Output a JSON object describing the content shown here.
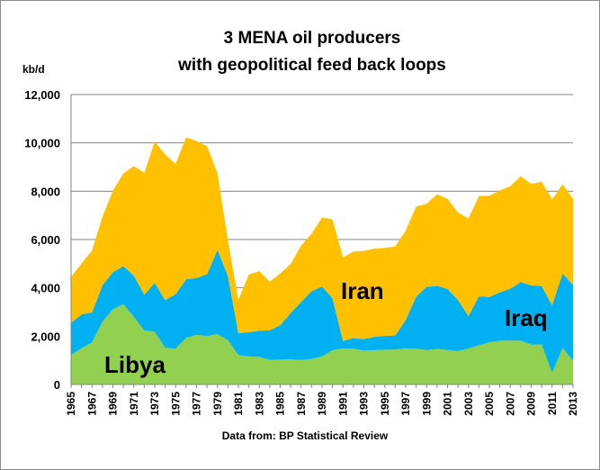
{
  "chart_data": {
    "type": "area",
    "stacked": true,
    "title": [
      "3 MENA oil producers",
      "with geopolitical feed back loops"
    ],
    "ylabel": "kb/d",
    "source": "Data from: BP Statistical Review",
    "ylim": [
      0,
      12000
    ],
    "yticks": [
      "0",
      "2,000",
      "4,000",
      "6,000",
      "8,000",
      "10,000",
      "12,000"
    ],
    "ytick_values": [
      0,
      2000,
      4000,
      6000,
      8000,
      10000,
      12000
    ],
    "grid": true,
    "x": [
      1965,
      1966,
      1967,
      1968,
      1969,
      1970,
      1971,
      1972,
      1973,
      1974,
      1975,
      1976,
      1977,
      1978,
      1979,
      1980,
      1981,
      1982,
      1983,
      1984,
      1985,
      1986,
      1987,
      1988,
      1989,
      1990,
      1991,
      1992,
      1993,
      1994,
      1995,
      1996,
      1997,
      1998,
      1999,
      2000,
      2001,
      2002,
      2003,
      2004,
      2005,
      2006,
      2007,
      2008,
      2009,
      2010,
      2011,
      2012,
      2013
    ],
    "xticks": [
      "1965",
      "1967",
      "1969",
      "1971",
      "1973",
      "1975",
      "1977",
      "1979",
      "1981",
      "1983",
      "1985",
      "1987",
      "1989",
      "1991",
      "1993",
      "1995",
      "1997",
      "1999",
      "2001",
      "2003",
      "2005",
      "2007",
      "2009",
      "2011",
      "2013"
    ],
    "series": [
      {
        "name": "Libya",
        "color": "#92d050",
        "values": [
          1220,
          1500,
          1740,
          2600,
          3110,
          3320,
          2800,
          2240,
          2180,
          1520,
          1480,
          1930,
          2060,
          2000,
          2090,
          1830,
          1220,
          1160,
          1140,
          1020,
          1030,
          1040,
          1010,
          1060,
          1160,
          1420,
          1490,
          1480,
          1400,
          1420,
          1440,
          1450,
          1490,
          1480,
          1430,
          1470,
          1430,
          1380,
          1490,
          1620,
          1740,
          1810,
          1820,
          1820,
          1650,
          1660,
          480,
          1510,
          990
        ]
      },
      {
        "name": "Iraq",
        "color": "#00b0f0",
        "values": [
          1320,
          1400,
          1240,
          1500,
          1530,
          1580,
          1700,
          1470,
          2020,
          1970,
          2260,
          2420,
          2350,
          2560,
          3480,
          2650,
          900,
          1000,
          1080,
          1220,
          1420,
          1920,
          2400,
          2800,
          2890,
          2150,
          310,
          440,
          480,
          550,
          560,
          580,
          1180,
          2150,
          2610,
          2610,
          2520,
          2120,
          1340,
          2030,
          1880,
          2000,
          2140,
          2420,
          2450,
          2410,
          2800,
          3080,
          3130
        ]
      },
      {
        "name": "Iran",
        "color": "#ffc000",
        "values": [
          1910,
          2100,
          2570,
          2840,
          3380,
          3830,
          4540,
          5050,
          5860,
          6020,
          5390,
          5880,
          5660,
          5300,
          3170,
          1470,
          1380,
          2390,
          2470,
          2020,
          2140,
          2030,
          2340,
          2380,
          2860,
          3270,
          3460,
          3580,
          3650,
          3650,
          3650,
          3680,
          3700,
          3730,
          3440,
          3800,
          3740,
          3620,
          4040,
          4150,
          4190,
          4220,
          4250,
          4380,
          4200,
          4320,
          4380,
          3700,
          3560
        ]
      }
    ],
    "annotations": [
      "Libya",
      "Iran",
      "Iraq"
    ]
  }
}
